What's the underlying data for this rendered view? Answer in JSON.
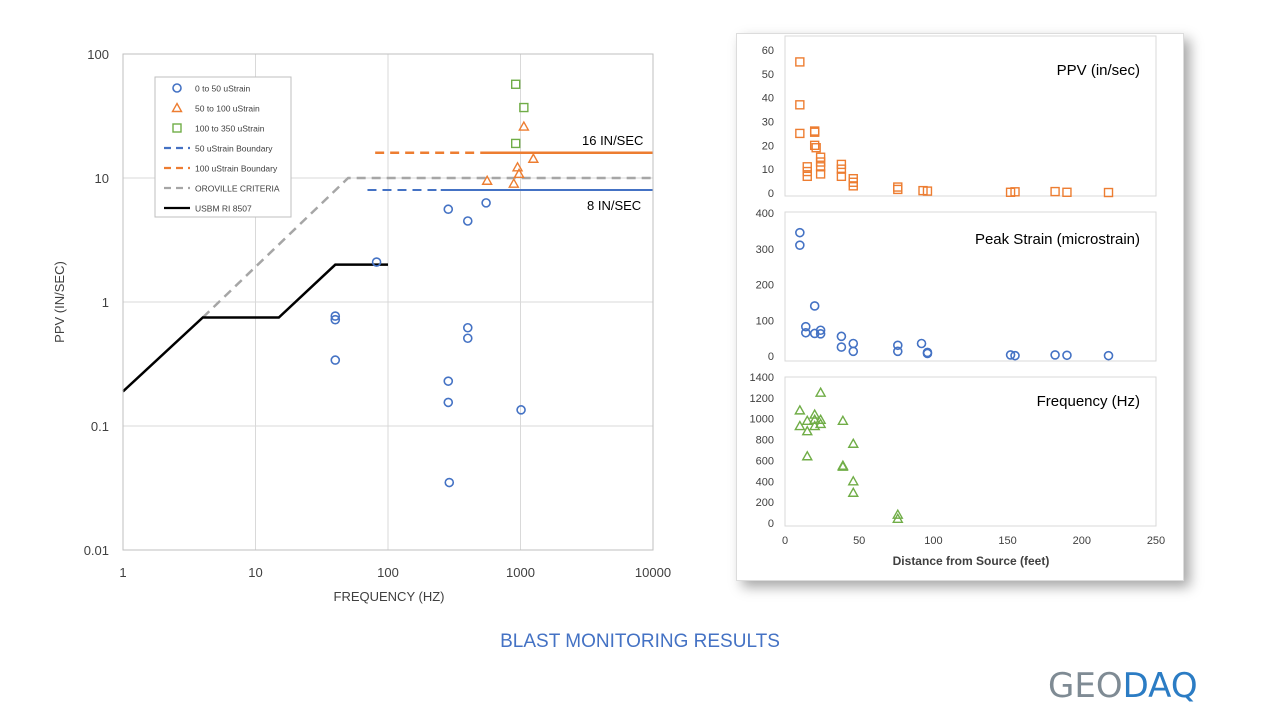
{
  "caption": "BLAST MONITORING RESULTS",
  "logo": {
    "part1": "GEO",
    "part2": "DAQ",
    "colors": {
      "part1": "#7f8b94",
      "part2": "#2b7cc4"
    }
  },
  "chart_data": [
    {
      "type": "scatter",
      "xlabel": "FREQUENCY (HZ)",
      "ylabel": "PPV (IN/SEC)",
      "x_scale": "log",
      "y_scale": "log",
      "xlim": [
        1,
        10000
      ],
      "ylim": [
        0.01,
        100
      ],
      "x_ticks": [
        "1",
        "10",
        "100",
        "1000",
        "10000"
      ],
      "y_ticks": [
        "0.01",
        "0.1",
        "1",
        "10",
        "100"
      ],
      "grid": true,
      "legend_position": "top-left",
      "annotations": [
        "16 IN/SEC",
        "8 IN/SEC"
      ],
      "series": [
        {
          "name": "0 to 50 uStrain",
          "marker": "circle",
          "color": "#4472c4",
          "x": [
            82,
            40,
            40,
            40,
            285,
            285,
            285,
            400,
            400,
            400,
            290,
            550,
            1010
          ],
          "y": [
            2.1,
            0.77,
            0.72,
            0.34,
            5.6,
            0.23,
            0.155,
            4.5,
            0.62,
            0.51,
            0.035,
            6.3,
            0.135
          ]
        },
        {
          "name": "50 to 100 uStrain",
          "marker": "triangle",
          "color": "#ed7d31",
          "x": [
            560,
            890,
            950,
            975,
            1060,
            1250
          ],
          "y": [
            9.5,
            9.0,
            12.2,
            10.8,
            26.0,
            14.3
          ]
        },
        {
          "name": "100 to 350 uStrain",
          "marker": "square",
          "color": "#70ad47",
          "x": [
            920,
            920,
            1060
          ],
          "y": [
            57.0,
            19.0,
            37.0
          ]
        },
        {
          "name": "50 uStrain Boundary",
          "style": "dashed-then-solid",
          "color": "#4472c4",
          "x": [
            70,
            10000
          ],
          "y": [
            8,
            8
          ]
        },
        {
          "name": "100 uStrain Boundary",
          "style": "dashed-then-solid",
          "color": "#ed7d31",
          "x": [
            80,
            10000
          ],
          "y": [
            16,
            16
          ]
        },
        {
          "name": "OROVILLE CRITERIA",
          "style": "dashed",
          "color": "#a6a6a6",
          "x": [
            4,
            50,
            10000
          ],
          "y": [
            0.75,
            10,
            10
          ]
        },
        {
          "name": "USBM RI 8507",
          "style": "solid",
          "color": "#000000",
          "x": [
            1,
            4,
            15,
            40,
            100
          ],
          "y": [
            0.19,
            0.75,
            0.75,
            2.0,
            2.0
          ]
        }
      ]
    },
    {
      "type": "scatter",
      "title": "PPV (in/sec)",
      "ylim": [
        0,
        60
      ],
      "y_ticks": [
        "0",
        "10",
        "20",
        "30",
        "40",
        "50",
        "60"
      ],
      "grid": false,
      "series": [
        {
          "marker": "square",
          "color": "#ed7d31",
          "x": [
            10,
            10,
            10,
            15,
            15,
            15,
            20,
            20,
            21,
            20,
            24,
            24,
            24,
            24,
            38,
            38,
            38,
            46,
            46,
            46,
            76,
            76,
            93,
            96,
            152,
            155,
            182,
            190,
            218
          ],
          "y": [
            55,
            37,
            25,
            11,
            9,
            7,
            26,
            20,
            19,
            25.5,
            15,
            13,
            11,
            8,
            12,
            10,
            7,
            6,
            4.5,
            3,
            2.5,
            1.5,
            1,
            0.8,
            0.3,
            0.5,
            0.6,
            0.3,
            0.2
          ]
        }
      ]
    },
    {
      "type": "scatter",
      "title": "Peak Strain (microstrain)",
      "ylim": [
        0,
        400
      ],
      "y_ticks": [
        "0",
        "100",
        "200",
        "300",
        "400"
      ],
      "grid": false,
      "series": [
        {
          "marker": "circle",
          "color": "#4472c4",
          "x": [
            10,
            10,
            20,
            14,
            14,
            20,
            24,
            24,
            38,
            38,
            46,
            46,
            76,
            76,
            92,
            96,
            96,
            152,
            155,
            182,
            190,
            218
          ],
          "y": [
            345,
            310,
            140,
            82,
            65,
            63,
            72,
            62,
            55,
            25,
            35,
            13,
            30,
            13,
            35,
            10,
            7,
            3,
            1,
            3,
            2,
            1
          ]
        }
      ]
    },
    {
      "type": "scatter",
      "title": "Frequency (Hz)",
      "xlabel": "Distance from Source (feet)",
      "xlim": [
        0,
        250
      ],
      "ylim": [
        0,
        1400
      ],
      "x_ticks": [
        "0",
        "50",
        "100",
        "150",
        "200",
        "250"
      ],
      "y_ticks": [
        "0",
        "200",
        "400",
        "600",
        "800",
        "1000",
        "1200",
        "1400"
      ],
      "grid": false,
      "series": [
        {
          "marker": "triangle",
          "color": "#70ad47",
          "x": [
            10,
            10,
            15,
            15,
            15,
            20,
            20,
            20,
            24,
            24,
            24,
            39,
            39,
            39,
            46,
            46,
            46,
            76,
            76
          ],
          "y": [
            1080,
            930,
            980,
            880,
            640,
            1040,
            990,
            930,
            1250,
            990,
            950,
            980,
            550,
            540,
            760,
            400,
            290,
            80,
            40
          ]
        }
      ]
    }
  ]
}
